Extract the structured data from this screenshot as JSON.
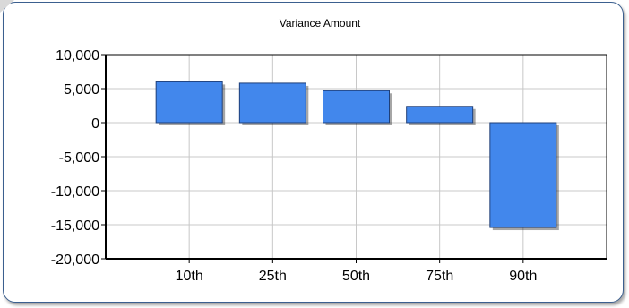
{
  "chart_data": {
    "type": "bar",
    "title": "Variance Amount",
    "xlabel": "",
    "ylabel": "",
    "categories": [
      "10th",
      "25th",
      "50th",
      "75th",
      "90th"
    ],
    "values": [
      6000,
      5800,
      4700,
      2400,
      -15400
    ],
    "ylim": [
      -20000,
      10000
    ],
    "yticks": [
      10000,
      5000,
      0,
      -5000,
      -10000,
      -15000,
      -20000
    ],
    "ytick_labels": [
      "10,000",
      "5,000",
      "0",
      "-5,000",
      "-10,000",
      "-15,000",
      "-20,000"
    ],
    "grid": true,
    "legend": "none",
    "colors": {
      "bar_fill": "#4287ec",
      "bar_stroke": "#1f3f78",
      "grid": "#c8c8c8",
      "axis": "#000000",
      "panel_border": "#3b5f8f"
    }
  }
}
